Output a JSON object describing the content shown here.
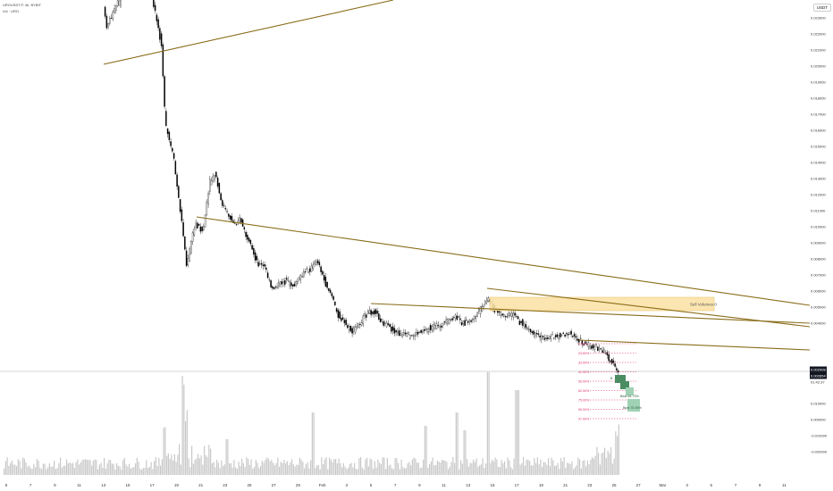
{
  "header": {
    "symbol_line": "UROUSDT.P, 4h, BYBIT",
    "indicator_line": "Vol · URO",
    "currency_badge": "USDT"
  },
  "price_axis": [
    "0.023000",
    "0.022000",
    "0.021000",
    "0.020000",
    "0.019000",
    "0.018000",
    "0.017000",
    "0.016000",
    "0.015000",
    "0.014000",
    "0.013000",
    "0.012000",
    "0.011000",
    "0.010000",
    "0.009000",
    "0.008000",
    "0.007000",
    "0.006000",
    "0.005000",
    "0.004000"
  ],
  "price_labels": {
    "last": "0.002908",
    "prev": "0.002854",
    "countdown": "01:42:37"
  },
  "volume_axis": [
    "0.010000",
    "0.000000",
    "-0.010000",
    "-0.020000"
  ],
  "time_axis": [
    "5",
    "7",
    "9",
    "11",
    "13",
    "15",
    "17",
    "19",
    "21",
    "23",
    "25",
    "27",
    "29",
    "Feb",
    "3",
    "5",
    "7",
    "9",
    "11",
    "13",
    "15",
    "17",
    "19",
    "21",
    "23",
    "25",
    "27",
    "Mar",
    "3",
    "5",
    "7",
    "9",
    "11"
  ],
  "annotations": {
    "sell_zone": "Sell Volumes 0",
    "fib_levels": [
      "0.00%",
      "23.60%",
      "33.00%",
      "42.00%",
      "50.00%",
      "62.00%",
      "75.00%",
      "90.00%",
      "97.00%"
    ],
    "targets": [
      "B",
      "Beat 66-75%",
      "Beat 75-90%"
    ]
  },
  "colors": {
    "trendline": "#8a6d1a",
    "candle_up": "#ffffff",
    "candle_down": "#000000",
    "volume": "#c8c8c8",
    "zone_fill": "#fbe3a8",
    "zone_border": "#e6b84a",
    "fib": "#e0306a",
    "target_dark": "#4c8c63",
    "target_light": "#9fd2b4",
    "last_price_bg": "#131722"
  }
}
